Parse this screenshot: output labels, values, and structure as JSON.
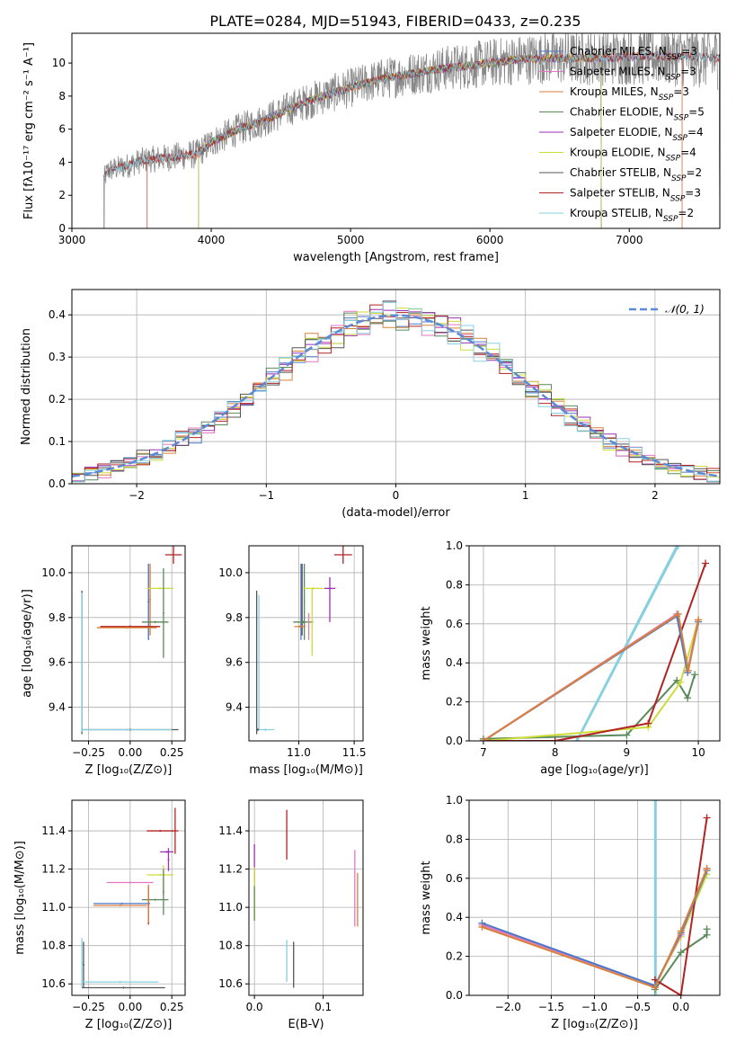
{
  "chart_data": [
    {
      "id": "spectrum",
      "type": "line",
      "title": "PLATE=0284, MJD=51943, FIBERID=0433, z=0.235",
      "xlabel": "wavelength [Angstrom, rest frame]",
      "ylabel": "Flux [fλ10⁻¹⁷ erg cm⁻² s⁻¹ A⁻¹]",
      "xlim": [
        3000,
        7650
      ],
      "ylim": [
        0,
        11.8
      ],
      "xticks": [
        3000,
        4000,
        5000,
        6000,
        7000
      ],
      "yticks": [
        0,
        2,
        4,
        6,
        8,
        10
      ],
      "grid": false,
      "legend_position": "right",
      "data_series_anchors": [
        [
          3230,
          3.0
        ],
        [
          3260,
          3.5
        ],
        [
          3400,
          3.8
        ],
        [
          3500,
          4.1
        ],
        [
          3700,
          4.3
        ],
        [
          3900,
          4.5
        ],
        [
          4000,
          5.2
        ],
        [
          4200,
          6.0
        ],
        [
          4400,
          6.6
        ],
        [
          4600,
          7.4
        ],
        [
          4800,
          8.0
        ],
        [
          5000,
          8.5
        ],
        [
          5200,
          9.0
        ],
        [
          5400,
          9.3
        ],
        [
          5600,
          9.6
        ],
        [
          5800,
          9.8
        ],
        [
          6000,
          10.0
        ],
        [
          6200,
          10.2
        ],
        [
          6400,
          10.3
        ],
        [
          6600,
          10.3
        ],
        [
          6800,
          10.3
        ],
        [
          7000,
          10.4
        ],
        [
          7200,
          10.4
        ],
        [
          7400,
          10.4
        ],
        [
          7600,
          10.3
        ]
      ],
      "series": [
        {
          "name": "Chabrier MILES, N_SSP=3",
          "color": "#4c78c8",
          "start": 3540,
          "end": 7380
        },
        {
          "name": "Salpeter MILES, N_SSP=3",
          "color": "#e377c2",
          "start": 3540,
          "end": 7380
        },
        {
          "name": "Kroupa MILES, N_SSP=3",
          "color": "#d9813a",
          "start": 3540,
          "end": 7380
        },
        {
          "name": "Chabrier ELODIE, N_SSP=5",
          "color": "#5a8a5a",
          "start": 3910,
          "end": 6800
        },
        {
          "name": "Salpeter ELODIE, N_SSP=4",
          "color": "#9b30b3",
          "start": 3910,
          "end": 6800
        },
        {
          "name": "Kroupa ELODIE, N_SSP=4",
          "color": "#cddc39",
          "start": 3910,
          "end": 6800
        },
        {
          "name": "Chabrier STELIB, N_SSP=2",
          "color": "#555555",
          "start": 3230,
          "end": 7650
        },
        {
          "name": "Salpeter STELIB, N_SSP=3",
          "color": "#b22222",
          "start": 3230,
          "end": 7650
        },
        {
          "name": "Kroupa STELIB, N_SSP=2",
          "color": "#87d0e0",
          "start": 3230,
          "end": 7650
        }
      ]
    },
    {
      "id": "residuals",
      "type": "area",
      "xlabel": "(data-model)/error",
      "ylabel": "Normed distribution",
      "xlim": [
        -2.5,
        2.5
      ],
      "ylim": [
        0,
        0.46
      ],
      "xticks": [
        -2,
        -1,
        0,
        1,
        2
      ],
      "yticks": [
        0.0,
        0.1,
        0.2,
        0.3,
        0.4
      ],
      "grid": true,
      "legend_position": "top-right",
      "gaussian": {
        "name": "𝒩(0, 1)",
        "mean": 0,
        "sigma": 1,
        "color": "#5b8ad6"
      },
      "bin_width": 0.1,
      "histogram_colors": [
        "#4c78c8",
        "#e377c2",
        "#d9813a",
        "#5a8a5a",
        "#9b30b3",
        "#cddc39",
        "#555555",
        "#b22222",
        "#87d0e0"
      ]
    },
    {
      "id": "age-vs-Z",
      "type": "scatter",
      "xlabel": "Z [log₁₀(Z/Z⊙)]",
      "ylabel": "age  [log₁₀(age/yr)]",
      "xlim": [
        -0.35,
        0.33
      ],
      "ylim": [
        9.25,
        10.12
      ],
      "xticks": [
        -0.25,
        0.0,
        0.25
      ],
      "yticks": [
        9.4,
        9.6,
        9.8,
        10.0
      ],
      "grid": true,
      "points": [
        {
          "x": 0.26,
          "y": 10.08,
          "xerr": 0.05,
          "yerr": 0.04,
          "color": "#b22222"
        },
        {
          "x": 0.11,
          "y": 9.87,
          "xerr": 0.005,
          "yerr": 0.17,
          "color": "#e377c2"
        },
        {
          "x": 0.12,
          "y": 9.88,
          "xerr": 0.005,
          "yerr": 0.16,
          "color": "#d9813a"
        },
        {
          "x": 0.11,
          "y": 9.87,
          "xerr": 0.005,
          "yerr": 0.17,
          "color": "#4c78c8"
        },
        {
          "x": 0.18,
          "y": 9.93,
          "xerr": 0.08,
          "yerr": 0.005,
          "color": "#cddc39"
        },
        {
          "x": 0.2,
          "y": 9.82,
          "xerr": 0.005,
          "yerr": 0.2,
          "color": "#5a8a5a"
        },
        {
          "x": 0.15,
          "y": 9.78,
          "xerr": 0.08,
          "yerr": 0.005,
          "color": "#5a8a5a"
        },
        {
          "x": 0.0,
          "y": 9.76,
          "xerr": 0.18,
          "yerr": 0.005,
          "color": "#b22222"
        },
        {
          "x": -0.02,
          "y": 9.755,
          "xerr": 0.18,
          "yerr": 0.005,
          "color": "#d9813a"
        },
        {
          "x": -0.29,
          "y": 9.6,
          "xerr": 0.005,
          "yerr": 0.32,
          "color": "#555555"
        },
        {
          "x": -0.29,
          "y": 9.6,
          "xerr": 0.005,
          "yerr": 0.31,
          "color": "#87d0e0"
        },
        {
          "x": 0.0,
          "y": 9.3,
          "xerr": 0.29,
          "yerr": 0.005,
          "color": "#555555"
        },
        {
          "x": -0.02,
          "y": 9.3,
          "xerr": 0.27,
          "yerr": 0.005,
          "color": "#87d0e0"
        }
      ]
    },
    {
      "id": "age-vs-mass",
      "type": "scatter",
      "xlabel": "mass [log₁₀(M/M⊙)]",
      "ylabel": "",
      "xlim": [
        10.55,
        11.58
      ],
      "ylim": [
        9.25,
        10.12
      ],
      "xticks": [
        11.0,
        11.5
      ],
      "yticks": [
        9.4,
        9.6,
        9.8,
        10.0
      ],
      "grid": true,
      "points": [
        {
          "x": 11.4,
          "y": 10.08,
          "xerr": 0.08,
          "yerr": 0.04,
          "color": "#b22222"
        },
        {
          "x": 11.02,
          "y": 9.87,
          "xerr": 0.005,
          "yerr": 0.17,
          "color": "#4c78c8"
        },
        {
          "x": 11.03,
          "y": 9.88,
          "xerr": 0.005,
          "yerr": 0.16,
          "color": "#555555"
        },
        {
          "x": 11.05,
          "y": 9.87,
          "xerr": 0.005,
          "yerr": 0.17,
          "color": "#5a8a5a"
        },
        {
          "x": 11.13,
          "y": 9.93,
          "xerr": 0.09,
          "yerr": 0.005,
          "color": "#cddc39"
        },
        {
          "x": 11.28,
          "y": 9.93,
          "xerr": 0.05,
          "yerr": 0.005,
          "color": "#9b30b3"
        },
        {
          "x": 11.28,
          "y": 9.88,
          "xerr": 0.005,
          "yerr": 0.1,
          "color": "#9b30b3"
        },
        {
          "x": 11.04,
          "y": 9.78,
          "xerr": 0.09,
          "yerr": 0.005,
          "color": "#5a8a5a"
        },
        {
          "x": 11.12,
          "y": 9.78,
          "xerr": 0.005,
          "yerr": 0.15,
          "color": "#cddc39"
        },
        {
          "x": 11.01,
          "y": 9.76,
          "xerr": 0.05,
          "yerr": 0.005,
          "color": "#d9813a"
        },
        {
          "x": 11.09,
          "y": 9.76,
          "xerr": 0.005,
          "yerr": 0.06,
          "color": "#e377c2"
        },
        {
          "x": 10.62,
          "y": 9.6,
          "xerr": 0.005,
          "yerr": 0.32,
          "color": "#555555"
        },
        {
          "x": 10.64,
          "y": 9.6,
          "xerr": 0.005,
          "yerr": 0.3,
          "color": "#87d0e0"
        },
        {
          "x": 10.7,
          "y": 9.3,
          "xerr": 0.08,
          "yerr": 0.005,
          "color": "#87d0e0"
        },
        {
          "x": 10.63,
          "y": 9.3,
          "xerr": 0.01,
          "yerr": 0.005,
          "color": "#555555"
        }
      ]
    },
    {
      "id": "weight-vs-age",
      "type": "line",
      "xlabel": "age  [log₁₀(age/yr)]",
      "ylabel": "mass weight",
      "xlim": [
        6.8,
        10.3
      ],
      "ylim": [
        0,
        1.0
      ],
      "xticks": [
        7,
        8,
        9,
        10
      ],
      "yticks": [
        0.0,
        0.2,
        0.4,
        0.6,
        0.8,
        1.0
      ],
      "grid": true,
      "series": [
        {
          "color": "#87d0e0",
          "x": [
            8.3,
            9.7
          ],
          "y": [
            0.0,
            1.0
          ]
        },
        {
          "color": "#87d0e0",
          "x": [
            8.31,
            9.72
          ],
          "y": [
            0.0,
            1.0
          ]
        },
        {
          "color": "#5a8a5a",
          "x": [
            7.0,
            9.0,
            9.7,
            9.85,
            9.95
          ],
          "y": [
            0.01,
            0.03,
            0.31,
            0.22,
            0.34
          ]
        },
        {
          "color": "#cddc39",
          "x": [
            7.0,
            9.3,
            9.75,
            10.0
          ],
          "y": [
            0.0,
            0.07,
            0.3,
            0.62
          ]
        },
        {
          "color": "#b22222",
          "x": [
            7.0,
            8.0,
            9.3,
            10.1
          ],
          "y": [
            0.0,
            0.0,
            0.09,
            0.91
          ]
        },
        {
          "color": "#e377c2",
          "x": [
            7.0,
            9.7,
            9.85,
            10.0
          ],
          "y": [
            0.0,
            0.65,
            0.36,
            0.62
          ]
        },
        {
          "color": "#4c78c8",
          "x": [
            7.0,
            9.7,
            9.85,
            10.0
          ],
          "y": [
            0.0,
            0.64,
            0.35,
            0.61
          ]
        },
        {
          "color": "#d9813a",
          "x": [
            7.0,
            9.72,
            9.86,
            10.0
          ],
          "y": [
            0.0,
            0.65,
            0.36,
            0.62
          ]
        }
      ]
    },
    {
      "id": "mass-vs-Z",
      "type": "scatter",
      "xlabel": "Z [log₁₀(Z/Z⊙)]",
      "ylabel": "mass [log₁₀(M/M⊙)]",
      "xlim": [
        -0.35,
        0.33
      ],
      "ylim": [
        10.54,
        11.56
      ],
      "xticks": [
        -0.25,
        0.0,
        0.25
      ],
      "yticks": [
        10.6,
        10.8,
        11.0,
        11.2,
        11.4
      ],
      "grid": true,
      "points": [
        {
          "x": 0.27,
          "y": 11.4,
          "xerr": 0.02,
          "yerr": 0.12,
          "color": "#b22222"
        },
        {
          "x": 0.18,
          "y": 11.4,
          "xerr": 0.08,
          "yerr": 0.005,
          "color": "#b22222"
        },
        {
          "x": 0.22,
          "y": 11.29,
          "xerr": 0.04,
          "yerr": 0.005,
          "color": "#9b30b3"
        },
        {
          "x": 0.23,
          "y": 11.25,
          "xerr": 0.005,
          "yerr": 0.06,
          "color": "#9b30b3"
        },
        {
          "x": 0.18,
          "y": 11.17,
          "xerr": 0.08,
          "yerr": 0.005,
          "color": "#cddc39"
        },
        {
          "x": 0.2,
          "y": 11.14,
          "xerr": 0.005,
          "yerr": 0.08,
          "color": "#cddc39"
        },
        {
          "x": 0.2,
          "y": 11.08,
          "xerr": 0.005,
          "yerr": 0.12,
          "color": "#5a8a5a"
        },
        {
          "x": 0.15,
          "y": 11.04,
          "xerr": 0.08,
          "yerr": 0.005,
          "color": "#5a8a5a"
        },
        {
          "x": 0.11,
          "y": 11.01,
          "xerr": 0.005,
          "yerr": 0.1,
          "color": "#b22222"
        },
        {
          "x": 0.11,
          "y": 11.02,
          "xerr": 0.005,
          "yerr": 0.1,
          "color": "#d9813a"
        },
        {
          "x": 0.0,
          "y": 11.13,
          "xerr": 0.14,
          "yerr": 0.005,
          "color": "#e377c2"
        },
        {
          "x": -0.05,
          "y": 11.02,
          "xerr": 0.17,
          "yerr": 0.005,
          "color": "#4c78c8"
        },
        {
          "x": -0.06,
          "y": 11.01,
          "xerr": 0.16,
          "yerr": 0.005,
          "color": "#d9813a"
        },
        {
          "x": -0.29,
          "y": 10.71,
          "xerr": 0.005,
          "yerr": 0.13,
          "color": "#87d0e0"
        },
        {
          "x": -0.28,
          "y": 10.7,
          "xerr": 0.005,
          "yerr": 0.12,
          "color": "#555555"
        },
        {
          "x": -0.06,
          "y": 10.61,
          "xerr": 0.23,
          "yerr": 0.005,
          "color": "#87d0e0"
        },
        {
          "x": -0.04,
          "y": 10.58,
          "xerr": 0.25,
          "yerr": 0.005,
          "color": "#555555"
        }
      ]
    },
    {
      "id": "mass-vs-ebv",
      "type": "scatter",
      "xlabel": "E(B-V)",
      "ylabel": "",
      "xlim": [
        -0.008,
        0.158
      ],
      "ylim": [
        10.54,
        11.56
      ],
      "xticks": [
        0.0,
        0.1
      ],
      "yticks": [
        10.6,
        10.8,
        11.0,
        11.2,
        11.4
      ],
      "grid": true,
      "points": [
        {
          "x": 0.047,
          "y": 11.38,
          "xerr": 0.0005,
          "yerr": 0.13,
          "color": "#b22222"
        },
        {
          "x": 0.0,
          "y": 11.22,
          "xerr": 0.0005,
          "yerr": 0.11,
          "color": "#9b30b3"
        },
        {
          "x": 0.0,
          "y": 11.07,
          "xerr": 0.0005,
          "yerr": 0.14,
          "color": "#cddc39"
        },
        {
          "x": 0.0,
          "y": 11.02,
          "xerr": 0.0005,
          "yerr": 0.09,
          "color": "#5a8a5a"
        },
        {
          "x": 0.146,
          "y": 11.1,
          "xerr": 0.0005,
          "yerr": 0.2,
          "color": "#e377c2"
        },
        {
          "x": 0.15,
          "y": 11.04,
          "xerr": 0.0005,
          "yerr": 0.14,
          "color": "#d9813a"
        },
        {
          "x": 0.047,
          "y": 10.72,
          "xerr": 0.0005,
          "yerr": 0.11,
          "color": "#87d0e0"
        },
        {
          "x": 0.057,
          "y": 10.7,
          "xerr": 0.0005,
          "yerr": 0.12,
          "color": "#555555"
        }
      ]
    },
    {
      "id": "weight-vs-Z",
      "type": "line",
      "xlabel": "Z [log₁₀(Z/Z⊙)]",
      "ylabel": "mass weight",
      "xlim": [
        -2.45,
        0.45
      ],
      "ylim": [
        0,
        1.0
      ],
      "xticks": [
        -2.0,
        -1.5,
        -1.0,
        -0.5,
        0.0
      ],
      "yticks": [
        0.0,
        0.2,
        0.4,
        0.6,
        0.8,
        1.0
      ],
      "grid": true,
      "series": [
        {
          "color": "#87d0e0",
          "x": [
            -0.3,
            -0.3
          ],
          "y": [
            0.0,
            1.0
          ]
        },
        {
          "color": "#87d0e0",
          "x": [
            -0.29,
            -0.29
          ],
          "y": [
            0.0,
            1.0
          ]
        },
        {
          "color": "#5a8a5a",
          "x": [
            -0.3,
            0.0,
            0.3,
            0.3
          ],
          "y": [
            0.03,
            0.22,
            0.31,
            0.34
          ]
        },
        {
          "color": "#cddc39",
          "x": [
            -0.3,
            0.0,
            0.3
          ],
          "y": [
            0.05,
            0.3,
            0.62
          ]
        },
        {
          "color": "#b22222",
          "x": [
            -0.3,
            0.0,
            0.3
          ],
          "y": [
            0.08,
            0.0,
            0.91
          ]
        },
        {
          "color": "#e377c2",
          "x": [
            -2.3,
            -0.3,
            0.0,
            0.3
          ],
          "y": [
            0.36,
            0.05,
            0.31,
            0.65
          ]
        },
        {
          "color": "#4c78c8",
          "x": [
            -2.3,
            -0.3,
            0.0,
            0.3
          ],
          "y": [
            0.37,
            0.05,
            0.32,
            0.64
          ]
        },
        {
          "color": "#d9813a",
          "x": [
            -2.3,
            -0.3,
            0.0,
            0.3
          ],
          "y": [
            0.35,
            0.04,
            0.33,
            0.65
          ]
        }
      ]
    }
  ]
}
